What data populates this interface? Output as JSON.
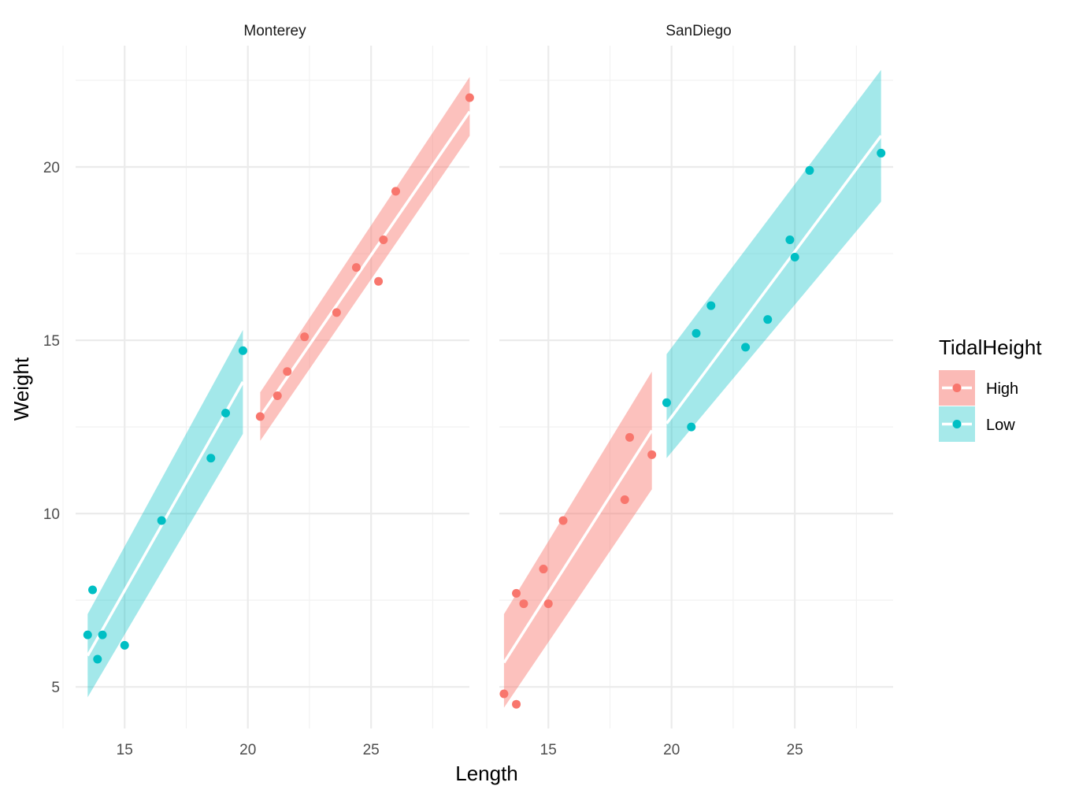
{
  "chart_data": {
    "type": "scatter",
    "xlabel": "Length",
    "ylabel": "Weight",
    "xlim": [
      12.5,
      29.5
    ],
    "ylim": [
      3.8,
      23.5
    ],
    "x_ticks": [
      15,
      20,
      25
    ],
    "y_ticks": [
      5,
      10,
      15,
      20
    ],
    "grid": true,
    "legend": {
      "title": "TidalHeight",
      "position": "right",
      "entries": [
        {
          "label": "High",
          "color": "#f8766d"
        },
        {
          "label": "Low",
          "color": "#00bfc4"
        }
      ]
    },
    "colors": {
      "High": "#f8766d",
      "Low": "#00bfc4",
      "High_band": "#f8766d",
      "Low_band": "#00bfc4",
      "fit_line": "#ffffff"
    },
    "facets": [
      {
        "name": "Monterey",
        "groups": [
          {
            "tidal": "Low",
            "points": [
              [
                13.5,
                6.5
              ],
              [
                13.7,
                7.8
              ],
              [
                13.9,
                5.8
              ],
              [
                14.1,
                6.5
              ],
              [
                15.0,
                6.2
              ],
              [
                16.5,
                9.8
              ],
              [
                18.5,
                11.6
              ],
              [
                19.1,
                12.9
              ],
              [
                19.8,
                14.7
              ]
            ],
            "fit": {
              "x_range": [
                13.5,
                19.8
              ],
              "y_range": [
                5.9,
                13.8
              ]
            },
            "band_lower": [
              [
                13.5,
                4.7
              ],
              [
                19.8,
                12.3
              ]
            ],
            "band_upper": [
              [
                13.5,
                7.1
              ],
              [
                19.8,
                15.3
              ]
            ]
          },
          {
            "tidal": "High",
            "points": [
              [
                20.5,
                12.8
              ],
              [
                21.2,
                13.4
              ],
              [
                21.6,
                14.1
              ],
              [
                22.3,
                15.1
              ],
              [
                23.6,
                15.8
              ],
              [
                24.4,
                17.1
              ],
              [
                25.3,
                16.7
              ],
              [
                25.5,
                17.9
              ],
              [
                26.0,
                19.3
              ],
              [
                29.0,
                22.0
              ]
            ],
            "fit": {
              "x_range": [
                20.5,
                29.0
              ],
              "y_range": [
                12.8,
                21.6
              ]
            },
            "band_lower": [
              [
                20.5,
                12.1
              ],
              [
                29.0,
                20.9
              ]
            ],
            "band_upper": [
              [
                20.5,
                13.5
              ],
              [
                29.0,
                22.6
              ]
            ]
          }
        ]
      },
      {
        "name": "SanDiego",
        "groups": [
          {
            "tidal": "High",
            "points": [
              [
                13.2,
                4.8
              ],
              [
                13.7,
                4.5
              ],
              [
                13.7,
                7.7
              ],
              [
                14.0,
                7.4
              ],
              [
                14.8,
                8.4
              ],
              [
                15.0,
                7.4
              ],
              [
                15.6,
                9.8
              ],
              [
                18.1,
                10.4
              ],
              [
                18.3,
                12.2
              ],
              [
                19.2,
                11.7
              ]
            ],
            "fit": {
              "x_range": [
                13.2,
                19.2
              ],
              "y_range": [
                5.7,
                12.4
              ]
            },
            "band_lower": [
              [
                13.2,
                4.4
              ],
              [
                19.2,
                10.7
              ]
            ],
            "band_upper": [
              [
                13.2,
                7.1
              ],
              [
                19.2,
                14.1
              ]
            ]
          },
          {
            "tidal": "Low",
            "points": [
              [
                19.8,
                13.2
              ],
              [
                20.8,
                12.5
              ],
              [
                21.0,
                15.2
              ],
              [
                21.6,
                16.0
              ],
              [
                23.0,
                14.8
              ],
              [
                23.9,
                15.6
              ],
              [
                24.8,
                17.9
              ],
              [
                25.0,
                17.4
              ],
              [
                25.6,
                19.9
              ],
              [
                28.5,
                20.4
              ]
            ],
            "fit": {
              "x_range": [
                19.8,
                28.5
              ],
              "y_range": [
                12.6,
                20.9
              ]
            },
            "band_lower": [
              [
                19.8,
                11.6
              ],
              [
                28.5,
                19.0
              ]
            ],
            "band_upper": [
              [
                19.8,
                14.6
              ],
              [
                28.5,
                22.8
              ]
            ]
          }
        ]
      }
    ]
  }
}
